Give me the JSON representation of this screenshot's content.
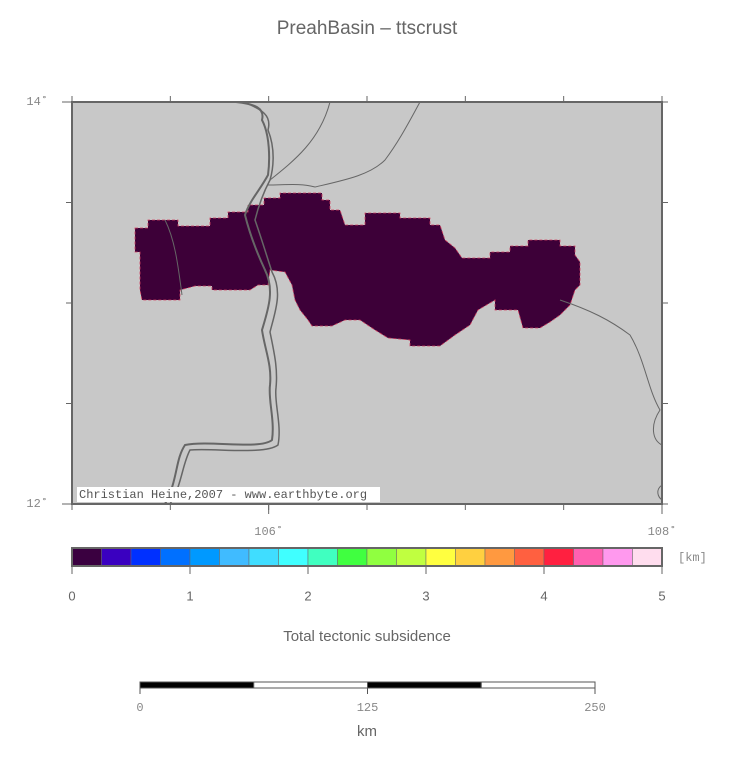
{
  "title": "PreahBasin – ttscrust",
  "map": {
    "lon_range": [
      105,
      108
    ],
    "lat_range": [
      12,
      14
    ],
    "lon_labels": [
      {
        "value": 106,
        "label": "106˚"
      },
      {
        "value": 108,
        "label": "108˚"
      }
    ],
    "lat_labels": [
      {
        "value": 14,
        "label": "14˚"
      },
      {
        "value": 12,
        "label": "12˚"
      }
    ],
    "credit": "Christian Heine,2007 - www.earthbyte.org",
    "basin_color": "#3d0038"
  },
  "colorbar": {
    "range": [
      0,
      5
    ],
    "ticks": [
      0,
      1,
      2,
      3,
      4,
      5
    ],
    "unit": "[km]",
    "label": "Total tectonic subsidence",
    "colors": [
      "#3a0040",
      "#3a00c0",
      "#0030ff",
      "#0070ff",
      "#0099ff",
      "#40bbff",
      "#40ddff",
      "#40ffff",
      "#40ffc0",
      "#40ff40",
      "#90ff40",
      "#c0ff40",
      "#ffff40",
      "#ffd040",
      "#ff9940",
      "#ff6040",
      "#ff2040",
      "#ff60b0",
      "#ff99ee",
      "#ffddee"
    ]
  },
  "scalebar": {
    "range": [
      0,
      250
    ],
    "ticks": [
      0,
      125,
      250
    ],
    "unit": "km"
  }
}
